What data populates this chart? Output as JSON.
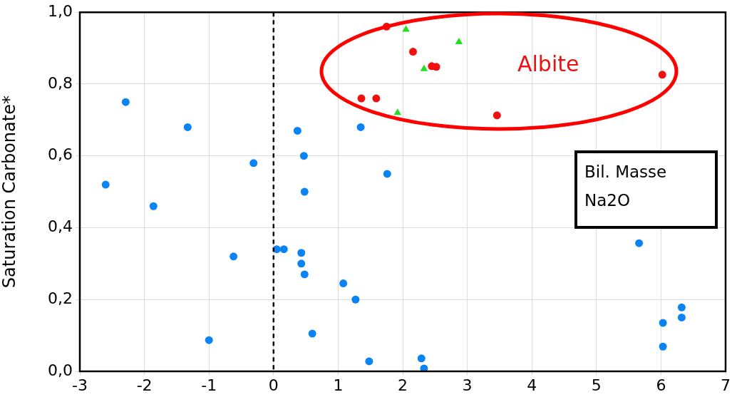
{
  "chart_data": {
    "type": "scatter",
    "ylabel": "Saturation Carbonate*",
    "xlim": [
      -3,
      7
    ],
    "xticks": [
      -3,
      -2,
      -1,
      0,
      1,
      2,
      3,
      4,
      5,
      6,
      7
    ],
    "ylim": [
      0,
      1
    ],
    "yticks": [
      {
        "value": 0,
        "label": "0,0"
      },
      {
        "value": 0.2,
        "label": "0,2"
      },
      {
        "value": 0.4,
        "label": "0,4"
      },
      {
        "value": 0.6,
        "label": "0,6"
      },
      {
        "value": 0.8,
        "label": "0,8"
      },
      {
        "value": 1,
        "label": "1,0"
      }
    ],
    "grid": true,
    "legend": false,
    "ref_lines": [
      {
        "axis": "x",
        "value": 0,
        "color": "#000000",
        "line_style": "dashed"
      }
    ],
    "annotations": [
      "Albite",
      "Bil. Masse Na2O"
    ],
    "series": [
      {
        "color": "#0a84f5",
        "marker": "circle",
        "x": [
          -2.6,
          -2.29,
          -1.86,
          -1.33,
          -1.0,
          -0.62,
          -0.31,
          0.05,
          0.16,
          0.37,
          0.43,
          0.43,
          0.47,
          0.48,
          0.48,
          0.6,
          1.08,
          1.27,
          1.35,
          1.48,
          1.76,
          2.29,
          2.33,
          5.66,
          6.03,
          6.03,
          6.32,
          6.32
        ],
        "values": [
          0.52,
          0.75,
          0.46,
          0.68,
          0.087,
          0.32,
          0.58,
          0.34,
          0.34,
          0.67,
          0.33,
          0.3,
          0.6,
          0.5,
          0.27,
          0.105,
          0.245,
          0.2,
          0.68,
          0.028,
          0.55,
          0.036,
          0.008,
          0.357,
          0.135,
          0.069,
          0.178,
          0.15
        ]
      },
      {
        "color": "#f01010",
        "marker": "circle",
        "x": [
          1.36,
          1.59,
          1.75,
          2.16,
          2.45,
          2.52,
          3.46,
          6.02
        ],
        "values": [
          0.76,
          0.76,
          0.96,
          0.89,
          0.85,
          0.848,
          0.713,
          0.826
        ]
      },
      {
        "color": "#22dd22",
        "marker": "triangle",
        "x": [
          2.05,
          2.87,
          2.33,
          1.92
        ],
        "values": [
          0.952,
          0.917,
          0.842,
          0.72
        ]
      }
    ]
  }
}
